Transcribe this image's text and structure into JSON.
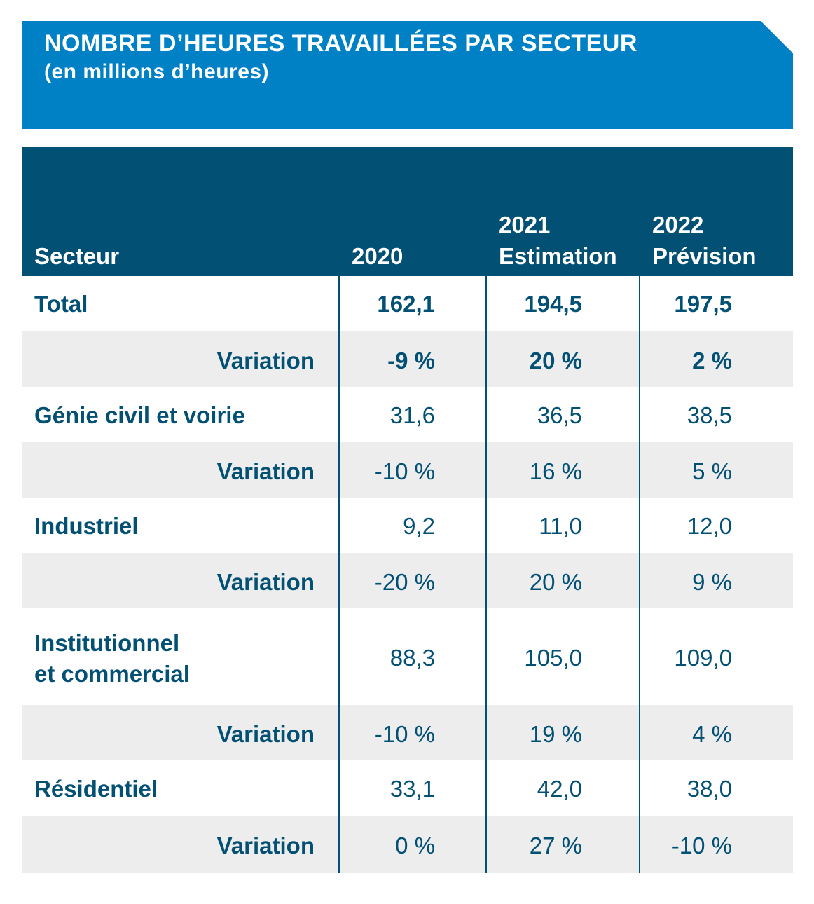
{
  "header": {
    "title": "NOMBRE D’HEURES TRAVAILLÉES PAR SECTEUR",
    "subtitle": "(en millions d’heures)"
  },
  "colors": {
    "banner": "#0081c6",
    "header_bg": "#035075",
    "text": "#035075",
    "shade": "#ededed"
  },
  "chart_data": {
    "type": "table",
    "title": "NOMBRE D’HEURES TRAVAILLÉES PAR SECTEUR",
    "subtitle": "(en millions d’heures)",
    "columns": {
      "sector": "Secteur",
      "y2020": "2020",
      "y2021_year": "2021",
      "y2021_note": "Estimation",
      "y2022_year": "2022",
      "y2022_note": "Prévision"
    },
    "rows": [
      {
        "label": "Total",
        "v2020": "162,1",
        "v2021": "194,5",
        "v2022": "197,5"
      },
      {
        "label": "Variation",
        "v2020": "-9 %",
        "v2021": "20 %",
        "v2022": "2 %"
      },
      {
        "label": "Génie civil et voirie",
        "v2020": "31,6",
        "v2021": "36,5",
        "v2022": "38,5"
      },
      {
        "label": "Variation",
        "v2020": "-10 %",
        "v2021": "16 %",
        "v2022": "5 %"
      },
      {
        "label": "Industriel",
        "v2020": "9,2",
        "v2021": "11,0",
        "v2022": "12,0"
      },
      {
        "label": "Variation",
        "v2020": "-20 %",
        "v2021": "20 %",
        "v2022": "9 %"
      },
      {
        "label": "Institutionnel",
        "label_line2": "et commercial",
        "v2020": "88,3",
        "v2021": "105,0",
        "v2022": "109,0"
      },
      {
        "label": "Variation",
        "v2020": "-10 %",
        "v2021": "19 %",
        "v2022": "4 %"
      },
      {
        "label": "Résidentiel",
        "v2020": "33,1",
        "v2021": "42,0",
        "v2022": "38,0"
      },
      {
        "label": "Variation",
        "v2020": "0 %",
        "v2021": "27 %",
        "v2022": "-10 %"
      }
    ]
  }
}
